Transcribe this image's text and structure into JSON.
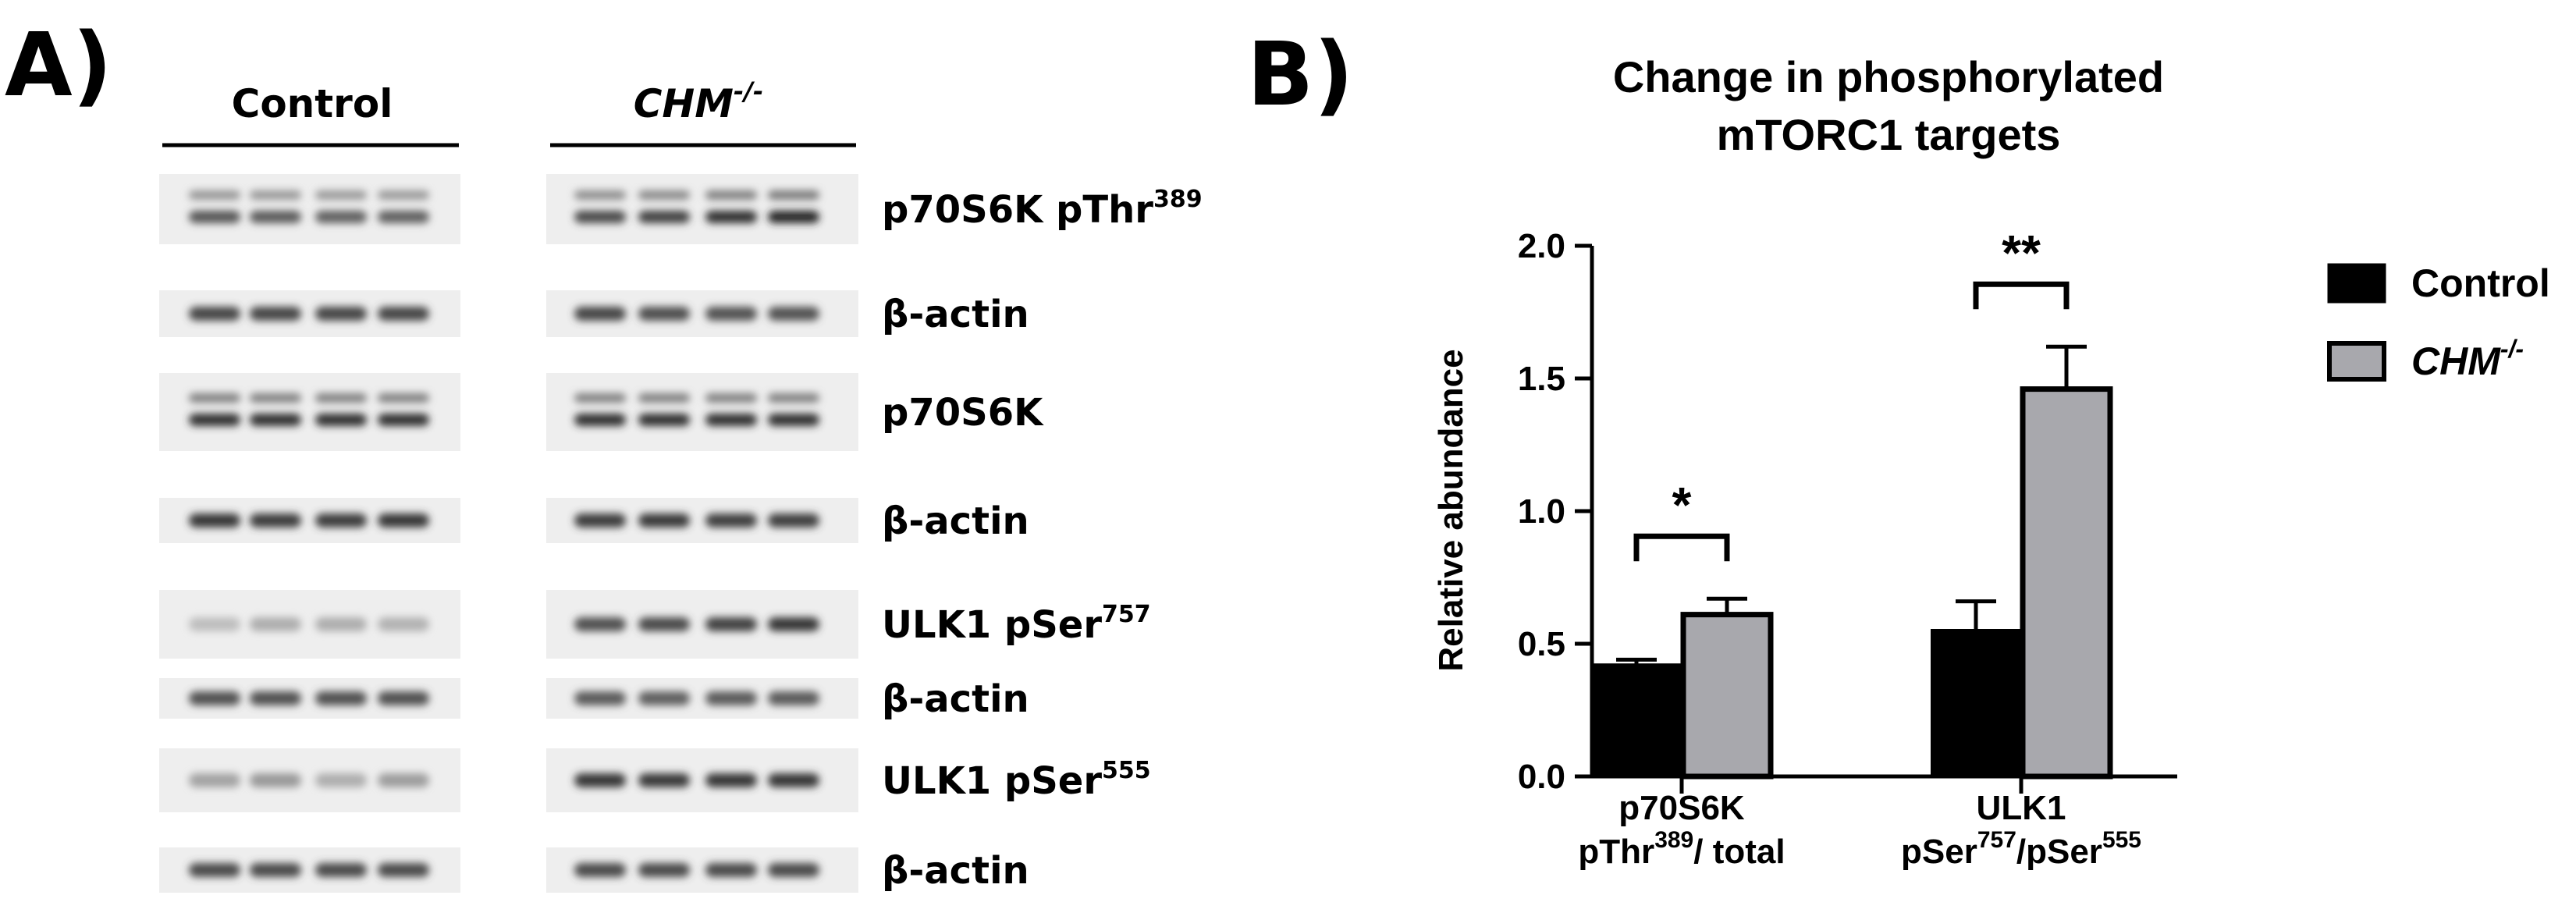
{
  "panels": {
    "a_letter": "A)",
    "b_letter": "B)"
  },
  "western_blot": {
    "groups": [
      {
        "label": "Control",
        "italic": false,
        "sup": ""
      },
      {
        "label": "CHM",
        "italic": true,
        "sup": "-/-"
      }
    ],
    "rows": [
      {
        "label": "p70S6K pThr",
        "sup": "389",
        "control_intensity": [
          0.72,
          0.7,
          0.68,
          0.68
        ],
        "chm_intensity": [
          0.78,
          0.82,
          0.9,
          0.95
        ],
        "doublet": true
      },
      {
        "label": "β-actin",
        "sup": "",
        "control_intensity": [
          0.8,
          0.8,
          0.8,
          0.8
        ],
        "chm_intensity": [
          0.8,
          0.76,
          0.74,
          0.74
        ],
        "doublet": false
      },
      {
        "label": "p70S6K",
        "sup": "",
        "control_intensity": [
          0.9,
          0.9,
          0.9,
          0.9
        ],
        "chm_intensity": [
          0.9,
          0.9,
          0.9,
          0.9
        ],
        "doublet": true
      },
      {
        "label": "β-actin",
        "sup": "",
        "control_intensity": [
          0.88,
          0.85,
          0.85,
          0.88
        ],
        "chm_intensity": [
          0.85,
          0.86,
          0.84,
          0.84
        ],
        "doublet": false
      },
      {
        "label": "ULK1 pSer",
        "sup": "757",
        "control_intensity": [
          0.22,
          0.3,
          0.3,
          0.28
        ],
        "chm_intensity": [
          0.75,
          0.78,
          0.82,
          0.88
        ],
        "doublet": false
      },
      {
        "label": "β-actin",
        "sup": "",
        "control_intensity": [
          0.75,
          0.75,
          0.75,
          0.75
        ],
        "chm_intensity": [
          0.7,
          0.68,
          0.7,
          0.7
        ],
        "doublet": false
      },
      {
        "label": "ULK1 pSer",
        "sup": "555",
        "control_intensity": [
          0.35,
          0.4,
          0.3,
          0.38
        ],
        "chm_intensity": [
          0.88,
          0.86,
          0.88,
          0.88
        ],
        "doublet": false
      },
      {
        "label": "β-actin",
        "sup": "",
        "control_intensity": [
          0.78,
          0.78,
          0.78,
          0.78
        ],
        "chm_intensity": [
          0.78,
          0.78,
          0.78,
          0.78
        ],
        "doublet": false
      }
    ]
  },
  "chart_data": {
    "type": "bar",
    "title_lines": [
      "Change in phosphorylated",
      "mTORC1 targets"
    ],
    "ylabel": "Relative abundance",
    "ylim": [
      0,
      2.0
    ],
    "yticks": [
      "0.0",
      "0.5",
      "1.0",
      "1.5",
      "2.0"
    ],
    "ytick_values": [
      0,
      0.5,
      1.0,
      1.5,
      2.0
    ],
    "categories": [
      {
        "line1": "p70S6K",
        "line2_pre": "pThr",
        "line2_sup": "389",
        "line2_post": "/ total"
      },
      {
        "line1": "ULK1",
        "line2_pre": "pSer",
        "line2_sup": "757",
        "line2_mid": "/pSer",
        "line2_sup2": "555"
      }
    ],
    "series": [
      {
        "name": "Control",
        "italic": false,
        "sup": "",
        "color": "#000000",
        "values": [
          0.42,
          0.55
        ],
        "errors": [
          0.02,
          0.11
        ]
      },
      {
        "name": "CHM",
        "italic": true,
        "sup": "-/-",
        "color": "#a8a8ad",
        "values": [
          0.61,
          1.46
        ],
        "errors": [
          0.06,
          0.16
        ]
      }
    ],
    "significance": [
      "*",
      "**"
    ],
    "legend_position": "right"
  },
  "colors": {
    "control": "#000000",
    "chm": "#a8a8ad",
    "axis": "#000000"
  }
}
